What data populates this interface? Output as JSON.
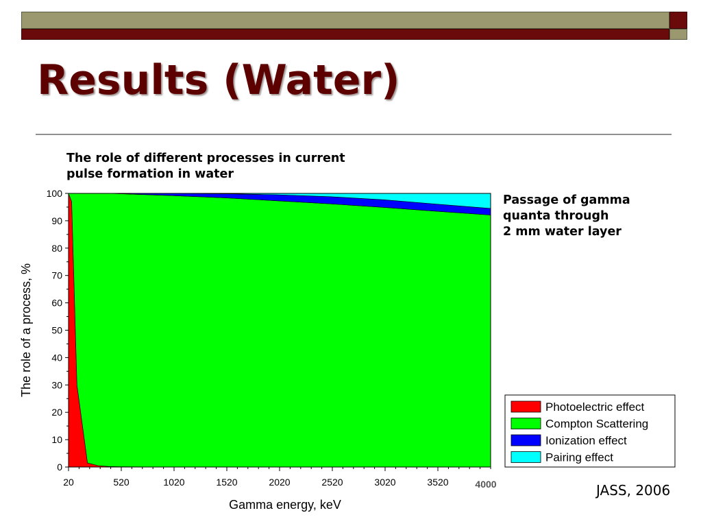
{
  "slide": {
    "title": "Results (Water)",
    "subtitle_line1": "The role of different processes in current",
    "subtitle_line2": "pulse formation in water",
    "note_line1": "Passage of gamma",
    "note_line2": "quanta through",
    "note_line3": "2 mm water layer",
    "source": "JASS, 2006"
  },
  "colors": {
    "photoelectric": "#ff0000",
    "compton": "#00ff00",
    "ionization": "#0000ff",
    "pairing": "#00ffff",
    "title": "#5c0000"
  },
  "chart_data": {
    "type": "area",
    "stacked": true,
    "xlabel": "Gamma energy, keV",
    "ylabel": "The role of a process, %",
    "xlim": [
      20,
      4020
    ],
    "ylim": [
      0,
      100
    ],
    "x_ticks": [
      20,
      520,
      1020,
      1520,
      2020,
      2520,
      3020,
      3520
    ],
    "x_end_label": "4000",
    "y_ticks": [
      0,
      10,
      20,
      30,
      40,
      50,
      60,
      70,
      80,
      90,
      100
    ],
    "grid": false,
    "legend_position": "bottom-right",
    "x": [
      20,
      50,
      100,
      200,
      300,
      400,
      500,
      1000,
      1500,
      2000,
      2500,
      3000,
      3500,
      4020
    ],
    "series": [
      {
        "name": "Photoelectric effect",
        "color": "#ff0000",
        "values": [
          100,
          97,
          30,
          1.5,
          0.5,
          0.2,
          0.1,
          0,
          0,
          0,
          0,
          0,
          0,
          0
        ]
      },
      {
        "name": "Compton Scattering",
        "color": "#00ff00",
        "values": [
          0,
          3,
          70,
          98.5,
          99.5,
          99.8,
          99.8,
          99.2,
          98.4,
          97.3,
          96.2,
          94.9,
          93.5,
          92.1
        ]
      },
      {
        "name": "Ionization effect",
        "color": "#0000ff",
        "values": [
          0,
          0,
          0,
          0,
          0,
          0,
          0.1,
          0.8,
          1.5,
          2.2,
          2.6,
          2.8,
          2.6,
          2.4
        ]
      },
      {
        "name": "Pairing effect",
        "color": "#00ffff",
        "values": [
          0,
          0,
          0,
          0,
          0,
          0,
          0,
          0,
          0.1,
          0.5,
          1.2,
          2.3,
          3.9,
          5.5
        ]
      }
    ]
  }
}
